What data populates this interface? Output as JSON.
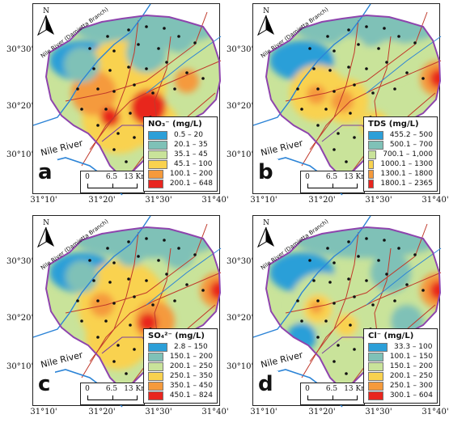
{
  "x_ticks": [
    "31°10'",
    "31°20'",
    "31°30'",
    "31°40'"
  ],
  "y_ticks": [
    "30°30'",
    "30°20'",
    "30°10'"
  ],
  "north_label": "N",
  "river_label": "Nile River",
  "branch_label": "Nile River (Damietta Branch)",
  "scale_bar": {
    "ticks": [
      "0",
      "6.5",
      "13 Km"
    ]
  },
  "colors": {
    "boundary": "#8e44ad",
    "river": "#2b83d6",
    "canal": "#c0392b",
    "drain": "#7a3e9d"
  },
  "panels": [
    {
      "letter": "a",
      "legend_title": "NO₃⁻ (mg/L)",
      "classes": [
        {
          "label": "0.5 – 20",
          "color": "#2c9fd8"
        },
        {
          "label": "20.1 – 35",
          "color": "#7fc1b7"
        },
        {
          "label": "35.1 – 45",
          "color": "#c9e39a"
        },
        {
          "label": "45.1 – 100",
          "color": "#f9d24f"
        },
        {
          "label": "100.1 – 200",
          "color": "#f59a3c"
        },
        {
          "label": "200.1 – 648",
          "color": "#e8261f"
        }
      ]
    },
    {
      "letter": "b",
      "legend_title": "TDS (mg/L)",
      "classes": [
        {
          "label": "455.2 – 500",
          "color": "#2c9fd8"
        },
        {
          "label": "500.1 – 700",
          "color": "#7fc1b7"
        },
        {
          "label": "700.1 – 1,000",
          "color": "#c9e39a"
        },
        {
          "label": "1000.1 – 1300",
          "color": "#f9d24f"
        },
        {
          "label": "1300.1 – 1800",
          "color": "#f59a3c"
        },
        {
          "label": "1800.1 – 2365",
          "color": "#e8261f"
        }
      ]
    },
    {
      "letter": "c",
      "legend_title": "SO₄²⁻ (mg/L)",
      "classes": [
        {
          "label": "2.8 – 150",
          "color": "#2c9fd8"
        },
        {
          "label": "150.1 – 200",
          "color": "#7fc1b7"
        },
        {
          "label": "200.1 – 250",
          "color": "#c9e39a"
        },
        {
          "label": "250.1 – 350",
          "color": "#f9d24f"
        },
        {
          "label": "350.1 – 450",
          "color": "#f59a3c"
        },
        {
          "label": "450.1 – 824",
          "color": "#e8261f"
        }
      ]
    },
    {
      "letter": "d",
      "legend_title": "Cl⁻ (mg/L)",
      "classes": [
        {
          "label": "33.3 – 100",
          "color": "#2c9fd8"
        },
        {
          "label": "100.1 – 150",
          "color": "#7fc1b7"
        },
        {
          "label": "150.1 – 200",
          "color": "#c9e39a"
        },
        {
          "label": "200.1 – 250",
          "color": "#f9d24f"
        },
        {
          "label": "250.1 – 300",
          "color": "#f59a3c"
        },
        {
          "label": "300.1 – 604",
          "color": "#e8261f"
        }
      ]
    }
  ]
}
